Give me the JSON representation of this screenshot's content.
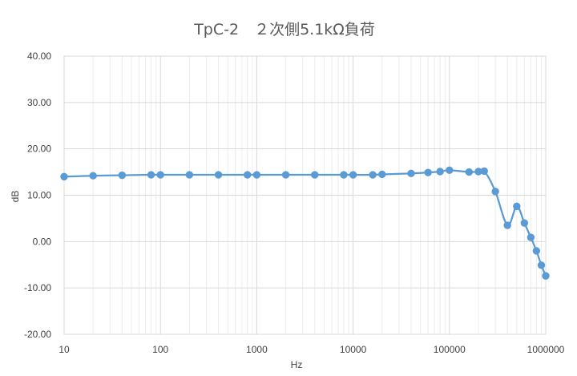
{
  "chart_data": {
    "type": "line",
    "title": "TpC-2　２次側5.1kΩ負荷",
    "xlabel": "Hz",
    "ylabel": "dB",
    "x_scale": "log",
    "xlim": [
      10,
      1000000
    ],
    "ylim": [
      -20,
      40
    ],
    "x_ticks": [
      "10",
      "100",
      "1000",
      "10000",
      "100000",
      "1000000"
    ],
    "y_ticks": [
      "40.00",
      "30.00",
      "20.00",
      "10.00",
      "0.00",
      "-10.00",
      "-20.00"
    ],
    "grid": true,
    "legend": "none",
    "series": [
      {
        "color": "#5B9BD5",
        "marker_color": "#5B9BD5",
        "points": [
          [
            10,
            14.0
          ],
          [
            20,
            14.2
          ],
          [
            40,
            14.3
          ],
          [
            80,
            14.4
          ],
          [
            100,
            14.4
          ],
          [
            200,
            14.4
          ],
          [
            400,
            14.4
          ],
          [
            800,
            14.4
          ],
          [
            1000,
            14.4
          ],
          [
            2000,
            14.4
          ],
          [
            4000,
            14.4
          ],
          [
            8000,
            14.4
          ],
          [
            10000,
            14.4
          ],
          [
            16000,
            14.4
          ],
          [
            20000,
            14.5
          ],
          [
            40000,
            14.7
          ],
          [
            60000,
            14.9
          ],
          [
            80000,
            15.1
          ],
          [
            100000,
            15.4
          ],
          [
            160000,
            15.0
          ],
          [
            200000,
            15.1
          ],
          [
            230000,
            15.2
          ],
          [
            300000,
            10.8
          ],
          [
            400000,
            3.5
          ],
          [
            500000,
            7.6
          ],
          [
            600000,
            4.0
          ],
          [
            700000,
            0.9
          ],
          [
            800000,
            -2.0
          ],
          [
            900000,
            -5.1
          ],
          [
            1000000,
            -7.4
          ]
        ]
      }
    ]
  }
}
